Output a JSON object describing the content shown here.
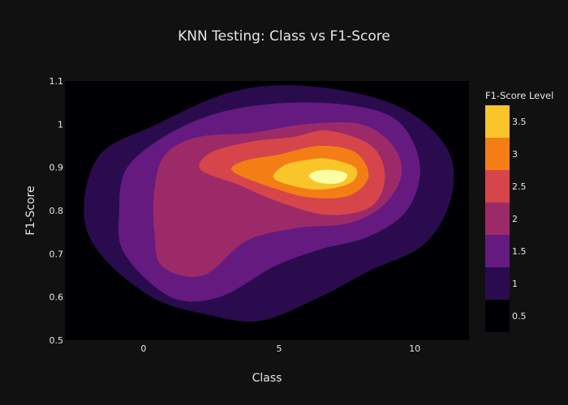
{
  "chart_data": {
    "type": "contour",
    "title": "KNN Testing: Class vs F1-Score",
    "xlabel": "Class",
    "ylabel": "F1-Score",
    "xlim": [
      -2.9,
      12.0
    ],
    "ylim": [
      0.5,
      1.1
    ],
    "x_ticks": [
      0,
      5,
      10
    ],
    "y_ticks": [
      0.5,
      0.6,
      0.7,
      0.8,
      0.9,
      1,
      1.1
    ],
    "grid": false,
    "colorbar": {
      "title": "F1-Score Level",
      "range": [
        0.25,
        3.75
      ],
      "ticks": [
        0.5,
        1,
        1.5,
        2,
        2.5,
        3,
        3.5
      ],
      "bands": [
        {
          "from": 0.25,
          "to": 0.75,
          "color": "#000004"
        },
        {
          "from": 0.75,
          "to": 1.25,
          "color": "#2a0c4e"
        },
        {
          "from": 1.25,
          "to": 1.75,
          "color": "#651a80"
        },
        {
          "from": 1.75,
          "to": 2.25,
          "color": "#9d2a68"
        },
        {
          "from": 2.25,
          "to": 2.75,
          "color": "#d6454a"
        },
        {
          "from": 2.75,
          "to": 3.25,
          "color": "#f47e16"
        },
        {
          "from": 3.25,
          "to": 3.75,
          "color": "#f9c52b"
        },
        {
          "from": 3.75,
          "to": 4.25,
          "color": "#fcfea4"
        }
      ]
    },
    "contours": [
      {
        "level": 0.75,
        "color": "#2a0c4e",
        "points": [
          [
            5.3,
            1.09
          ],
          [
            8,
            1.07
          ],
          [
            10,
            1.02
          ],
          [
            11.3,
            0.93
          ],
          [
            11.3,
            0.82
          ],
          [
            10.3,
            0.72
          ],
          [
            8.3,
            0.66
          ],
          [
            6.5,
            0.6
          ],
          [
            4.3,
            0.545
          ],
          [
            2.3,
            0.56
          ],
          [
            0.3,
            0.6
          ],
          [
            -1.6,
            0.7
          ],
          [
            -2.2,
            0.8
          ],
          [
            -1.6,
            0.93
          ],
          [
            0.5,
            1.0
          ],
          [
            3,
            1.07
          ]
        ]
      },
      {
        "level": 1.25,
        "color": "#651a80",
        "points": [
          [
            5.5,
            1.05
          ],
          [
            8,
            1.04
          ],
          [
            9.5,
            1.0
          ],
          [
            10.2,
            0.9
          ],
          [
            9.7,
            0.8
          ],
          [
            8.3,
            0.74
          ],
          [
            6.5,
            0.71
          ],
          [
            4.8,
            0.67
          ],
          [
            2.8,
            0.6
          ],
          [
            1,
            0.6
          ],
          [
            -0.7,
            0.7
          ],
          [
            -0.9,
            0.8
          ],
          [
            -0.6,
            0.9
          ],
          [
            1,
            0.98
          ],
          [
            3,
            1.03
          ]
        ]
      },
      {
        "level": 1.75,
        "color": "#9d2a68",
        "points": [
          [
            6,
            1.0
          ],
          [
            8,
            1.0
          ],
          [
            9.2,
            0.95
          ],
          [
            9.5,
            0.88
          ],
          [
            8.8,
            0.81
          ],
          [
            7.5,
            0.77
          ],
          [
            5.7,
            0.76
          ],
          [
            3.8,
            0.73
          ],
          [
            2.2,
            0.65
          ],
          [
            0.7,
            0.67
          ],
          [
            0.4,
            0.75
          ],
          [
            0.4,
            0.85
          ],
          [
            0.8,
            0.93
          ],
          [
            2,
            0.97
          ],
          [
            4,
            0.98
          ]
        ]
      },
      {
        "level": 2.25,
        "color": "#d6454a",
        "points": [
          [
            6.8,
            0.985
          ],
          [
            8.4,
            0.95
          ],
          [
            8.9,
            0.88
          ],
          [
            8.4,
            0.81
          ],
          [
            6.8,
            0.79
          ],
          [
            5,
            0.82
          ],
          [
            3.5,
            0.86
          ],
          [
            2.1,
            0.895
          ],
          [
            2.5,
            0.935
          ],
          [
            4,
            0.96
          ],
          [
            5.5,
            0.97
          ]
        ]
      },
      {
        "level": 2.75,
        "color": "#f47e16",
        "points": [
          [
            6.5,
            0.95
          ],
          [
            7.8,
            0.935
          ],
          [
            8.3,
            0.88
          ],
          [
            7.6,
            0.835
          ],
          [
            6.2,
            0.83
          ],
          [
            4.9,
            0.85
          ],
          [
            3.3,
            0.89
          ],
          [
            3.7,
            0.915
          ],
          [
            5,
            0.93
          ]
        ]
      },
      {
        "level": 3.25,
        "color": "#f9c52b",
        "points": [
          [
            6.8,
            0.92
          ],
          [
            7.8,
            0.9
          ],
          [
            7.7,
            0.867
          ],
          [
            6.8,
            0.85
          ],
          [
            5.8,
            0.853
          ],
          [
            4.8,
            0.875
          ],
          [
            5.2,
            0.905
          ],
          [
            6,
            0.917
          ]
        ]
      },
      {
        "level": 3.75,
        "color": "#fcfea4",
        "points": [
          [
            7,
            0.894
          ],
          [
            7.5,
            0.885
          ],
          [
            7.4,
            0.87
          ],
          [
            7,
            0.862
          ],
          [
            6.4,
            0.866
          ],
          [
            6.1,
            0.88
          ],
          [
            6.4,
            0.892
          ]
        ]
      }
    ]
  }
}
